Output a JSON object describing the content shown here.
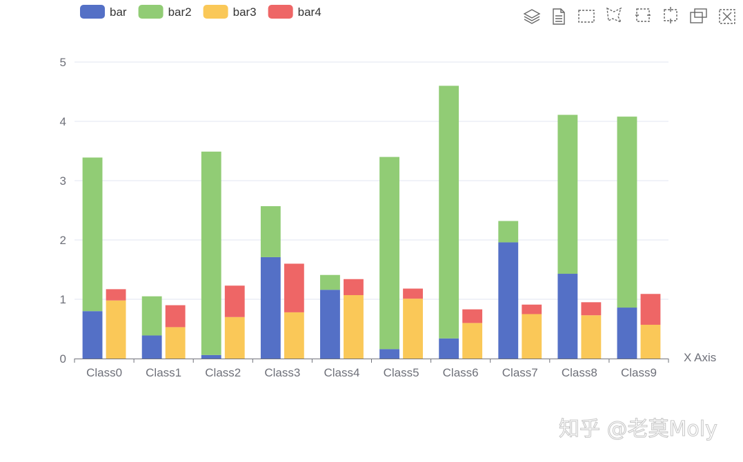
{
  "chart_data": {
    "type": "bar",
    "stacked": true,
    "categories": [
      "Class0",
      "Class1",
      "Class2",
      "Class3",
      "Class4",
      "Class5",
      "Class6",
      "Class7",
      "Class8",
      "Class9"
    ],
    "series": [
      {
        "name": "bar",
        "stack": "one",
        "color": "#5470c6",
        "values": [
          0.8,
          0.39,
          0.06,
          1.71,
          1.16,
          0.16,
          0.34,
          1.96,
          1.43,
          0.86
        ]
      },
      {
        "name": "bar2",
        "stack": "one",
        "color": "#91cc75",
        "values": [
          2.59,
          0.66,
          3.43,
          0.86,
          0.25,
          3.24,
          4.26,
          0.36,
          2.68,
          3.22
        ]
      },
      {
        "name": "bar3",
        "stack": "two",
        "color": "#fac858",
        "values": [
          0.98,
          0.53,
          0.7,
          0.78,
          1.07,
          1.01,
          0.6,
          0.75,
          0.73,
          0.57
        ]
      },
      {
        "name": "bar4",
        "stack": "two",
        "color": "#ee6666",
        "values": [
          0.19,
          0.37,
          0.53,
          0.82,
          0.27,
          0.17,
          0.23,
          0.16,
          0.22,
          0.52
        ]
      }
    ],
    "xlabel": "X Axis",
    "ylabel": "",
    "ylim": [
      0,
      5
    ],
    "yticks": [
      "0",
      "1",
      "2",
      "3",
      "4",
      "5"
    ],
    "grid": true,
    "legend_position": "top-left"
  },
  "toolbox": {
    "icons": [
      "stack-icon",
      "data-view-icon",
      "rect-select-icon",
      "polygon-select-icon",
      "keep-select-icon",
      "clear-select-icon",
      "zoom-icon",
      "zoom-reset-icon"
    ]
  },
  "watermark": "知乎 @老莫Moly"
}
